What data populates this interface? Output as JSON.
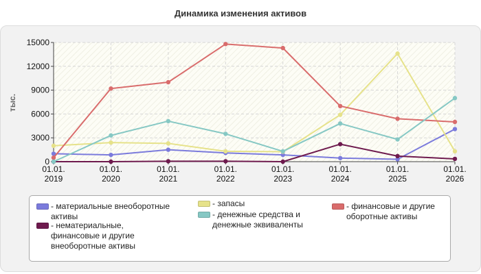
{
  "chart_data": {
    "type": "line",
    "title": "Динамика изменения активов",
    "ylabel": "тыс.",
    "xlabel": "",
    "ylim": [
      0,
      15000
    ],
    "yticks": [
      "0",
      "3000",
      "6000",
      "9000",
      "12000",
      "15000"
    ],
    "categories": [
      "01.01.\n2019",
      "01.01.\n2020",
      "01.01.\n2021",
      "01.01.\n2022",
      "01.01.\n2023",
      "01.01.\n2024",
      "01.01.\n2025",
      "01.01.\n2026"
    ],
    "grid": true,
    "legend_position": "bottom",
    "series": [
      {
        "name": "- материальные внеоборотные активы",
        "color": "#7b7bdc",
        "values": [
          1000,
          850,
          1500,
          1100,
          850,
          450,
          300,
          4100
        ]
      },
      {
        "name": "- запасы",
        "color": "#e6e28a",
        "values": [
          2000,
          2400,
          2300,
          1300,
          1250,
          5900,
          13600,
          1300
        ]
      },
      {
        "name": "- финансовые и другие оборотные активы",
        "color": "#d96c6c",
        "values": [
          500,
          9200,
          10000,
          14800,
          14300,
          7000,
          5400,
          5000
        ]
      },
      {
        "name": "- нематериальные, финансовые и другие внеоборотные активы",
        "color": "#6e1a4e",
        "values": [
          0,
          0,
          50,
          50,
          0,
          2200,
          700,
          350
        ]
      },
      {
        "name": "- денежные средства и денежные эквиваленты",
        "color": "#86c8c4",
        "values": [
          0,
          3300,
          5100,
          3500,
          1300,
          4800,
          2800,
          8000
        ]
      }
    ]
  }
}
